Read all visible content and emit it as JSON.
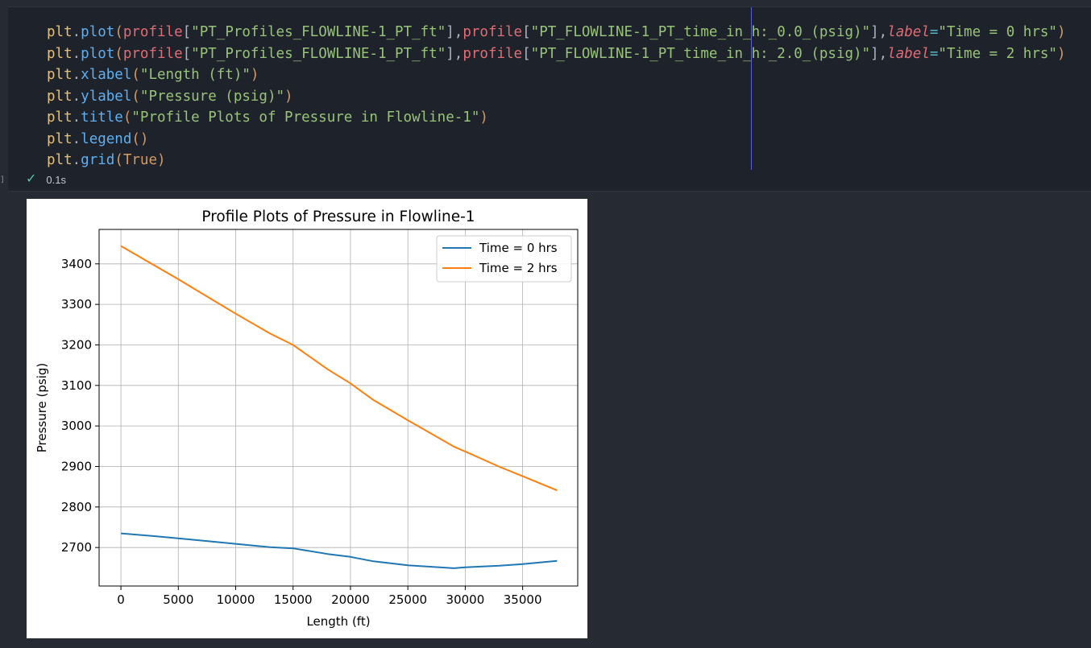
{
  "code_cell": {
    "lines": [
      [
        {
          "t": "plt",
          "c": "obj"
        },
        {
          "t": ".",
          "c": "punc"
        },
        {
          "t": "plot",
          "c": "fn"
        },
        {
          "t": "(",
          "c": "par"
        },
        {
          "t": "profile",
          "c": "var"
        },
        {
          "t": "[",
          "c": "punc"
        },
        {
          "t": "\"PT_Profiles_FLOWLINE-1_PT_ft\"",
          "c": "str"
        },
        {
          "t": "]",
          "c": "punc"
        },
        {
          "t": ",",
          "c": "punc"
        },
        {
          "t": "profile",
          "c": "var"
        },
        {
          "t": "[",
          "c": "punc"
        },
        {
          "t": "\"PT_FLOWLINE-1_PT_time_in_h:_0.0_(psig)\"",
          "c": "str"
        },
        {
          "t": "]",
          "c": "punc"
        },
        {
          "t": ",",
          "c": "punc"
        },
        {
          "t": "label",
          "c": "kw"
        },
        {
          "t": "=",
          "c": "op"
        },
        {
          "t": "\"Time = 0 hrs\"",
          "c": "str"
        },
        {
          "t": ")",
          "c": "par"
        }
      ],
      [
        {
          "t": "plt",
          "c": "obj"
        },
        {
          "t": ".",
          "c": "punc"
        },
        {
          "t": "plot",
          "c": "fn"
        },
        {
          "t": "(",
          "c": "par"
        },
        {
          "t": "profile",
          "c": "var"
        },
        {
          "t": "[",
          "c": "punc"
        },
        {
          "t": "\"PT_Profiles_FLOWLINE-1_PT_ft\"",
          "c": "str"
        },
        {
          "t": "]",
          "c": "punc"
        },
        {
          "t": ",",
          "c": "punc"
        },
        {
          "t": "profile",
          "c": "var"
        },
        {
          "t": "[",
          "c": "punc"
        },
        {
          "t": "\"PT_FLOWLINE-1_PT_time_in_h:_2.0_(psig)\"",
          "c": "str"
        },
        {
          "t": "]",
          "c": "punc"
        },
        {
          "t": ",",
          "c": "punc"
        },
        {
          "t": "label",
          "c": "kw"
        },
        {
          "t": "=",
          "c": "op"
        },
        {
          "t": "\"Time = 2 hrs\"",
          "c": "str"
        },
        {
          "t": ")",
          "c": "par"
        }
      ],
      [
        {
          "t": "plt",
          "c": "obj"
        },
        {
          "t": ".",
          "c": "punc"
        },
        {
          "t": "xlabel",
          "c": "fn"
        },
        {
          "t": "(",
          "c": "par"
        },
        {
          "t": "\"Length (ft)\"",
          "c": "str"
        },
        {
          "t": ")",
          "c": "par"
        }
      ],
      [
        {
          "t": "plt",
          "c": "obj"
        },
        {
          "t": ".",
          "c": "punc"
        },
        {
          "t": "ylabel",
          "c": "fn"
        },
        {
          "t": "(",
          "c": "par"
        },
        {
          "t": "\"Pressure (psig)\"",
          "c": "str"
        },
        {
          "t": ")",
          "c": "par"
        }
      ],
      [
        {
          "t": "plt",
          "c": "obj"
        },
        {
          "t": ".",
          "c": "punc"
        },
        {
          "t": "title",
          "c": "fn"
        },
        {
          "t": "(",
          "c": "par"
        },
        {
          "t": "\"Profile Plots of Pressure in Flowline-1\"",
          "c": "str"
        },
        {
          "t": ")",
          "c": "par"
        }
      ],
      [
        {
          "t": "plt",
          "c": "obj"
        },
        {
          "t": ".",
          "c": "punc"
        },
        {
          "t": "legend",
          "c": "fn"
        },
        {
          "t": "()",
          "c": "par"
        }
      ],
      [
        {
          "t": "plt",
          "c": "obj"
        },
        {
          "t": ".",
          "c": "punc"
        },
        {
          "t": "grid",
          "c": "fn"
        },
        {
          "t": "(",
          "c": "par"
        },
        {
          "t": "True",
          "c": "bool"
        },
        {
          "t": ")",
          "c": "par"
        }
      ]
    ],
    "execution_time": "0.1s",
    "status_icon": "check-icon",
    "status_color": "#4ec9b0"
  },
  "chart_data": {
    "type": "line",
    "title": "Profile Plots of Pressure in Flowline-1",
    "xlabel": "Length (ft)",
    "ylabel": "Pressure (psig)",
    "xlim": [
      -1900,
      39800
    ],
    "ylim": [
      2605,
      3485
    ],
    "xticks": [
      0,
      5000,
      10000,
      15000,
      20000,
      25000,
      30000,
      35000
    ],
    "yticks": [
      2700,
      2800,
      2900,
      3000,
      3100,
      3200,
      3300,
      3400
    ],
    "grid": true,
    "legend_position": "upper right",
    "series": [
      {
        "name": "Time = 0 hrs",
        "color": "#1f77b4",
        "x": [
          0,
          3000,
          6000,
          10000,
          13000,
          15000,
          18000,
          20000,
          22000,
          25000,
          29000,
          30000,
          33000,
          35000,
          38000
        ],
        "y": [
          2735,
          2728,
          2720,
          2709,
          2701,
          2698,
          2684,
          2677,
          2666,
          2656,
          2649,
          2651,
          2655,
          2659,
          2667
        ]
      },
      {
        "name": "Time = 2 hrs",
        "color": "#ff7f0e",
        "x": [
          0,
          5000,
          10000,
          13000,
          15000,
          18000,
          20000,
          22000,
          25000,
          29000,
          30000,
          33000,
          35000,
          38000
        ],
        "y": [
          3444,
          3362,
          3277,
          3228,
          3200,
          3140,
          3105,
          3064,
          3014,
          2949,
          2937,
          2899,
          2876,
          2841
        ]
      }
    ]
  }
}
